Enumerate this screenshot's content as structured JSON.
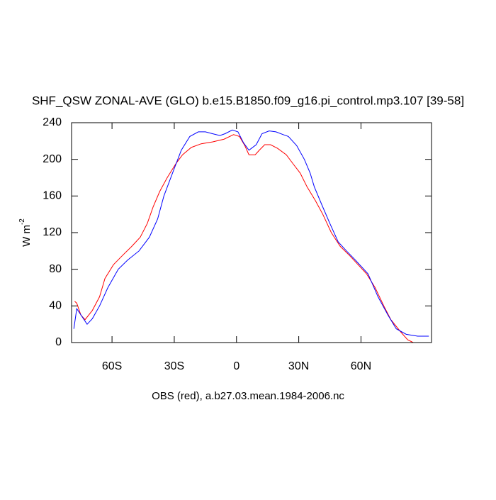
{
  "chart_data": {
    "type": "line",
    "title": "SHF_QSW ZONAL-AVE (GLO) b.e15.B1850.f09_g16.pi_control.mp3.107 [39-58]",
    "x_label": "OBS (red), a.b27.03.mean.1984-2006.nc",
    "y_label": "W m",
    "y_label_superscript": "-2",
    "xlim": [
      -79.5,
      94
    ],
    "ylim": [
      0,
      240
    ],
    "xticks": [
      {
        "value": -60,
        "label": "60S"
      },
      {
        "value": -30,
        "label": "30S"
      },
      0,
      {
        "value": 30,
        "label": "30N"
      },
      {
        "value": 60,
        "label": "60N"
      }
    ],
    "yticks": [
      0,
      40,
      80,
      120,
      160,
      200,
      240
    ],
    "series": [
      {
        "color": "#ff0000",
        "x": [
          -78,
          -77,
          -75,
          -73,
          -69.5,
          -66,
          -63.4,
          -59.3,
          -55,
          -50.5,
          -46.4,
          -43,
          -40.2,
          -37,
          -33.4,
          -29.3,
          -26,
          -21.8,
          -17,
          -11.6,
          -6,
          -1.4,
          1.4,
          4,
          6,
          9,
          11,
          13.6,
          16.4,
          19.8,
          24,
          27.3,
          30.7,
          34,
          38,
          41.6,
          45.7,
          50,
          54.5,
          58.6,
          62.7,
          66.8,
          71,
          74.4,
          79,
          82.5,
          85.2,
          92.7
        ],
        "values": [
          45,
          43,
          30,
          25,
          35,
          50,
          70,
          85,
          95,
          105,
          115,
          130,
          148,
          165,
          180,
          195,
          205,
          213,
          217,
          219,
          222,
          227,
          225,
          215,
          205,
          205,
          210,
          216,
          216,
          212,
          205,
          195,
          185,
          170,
          155,
          140,
          120,
          105,
          95,
          85,
          75,
          60,
          40,
          25,
          12,
          3,
          0,
          0
        ]
      },
      {
        "color": "#0000ff",
        "x": [
          -78.4,
          -77,
          -72,
          -69.5,
          -66,
          -62,
          -57,
          -52.5,
          -47,
          -42,
          -38,
          -35,
          -30,
          -26.6,
          -22.5,
          -18.4,
          -15,
          -11.6,
          -8,
          -5.5,
          -2,
          0.7,
          3.4,
          6,
          9.5,
          12.3,
          15.7,
          19,
          22.5,
          25,
          29,
          32.7,
          35.5,
          37.5,
          41.2,
          45,
          49,
          53,
          57.3,
          63.4,
          68.2,
          73,
          77,
          81.8,
          87.3,
          92.7
        ],
        "values": [
          15,
          37,
          20,
          26,
          40,
          60,
          80,
          90,
          100,
          115,
          135,
          160,
          190,
          210,
          225,
          230,
          230,
          228,
          226,
          228,
          232,
          230,
          218,
          210,
          216,
          228,
          231,
          230,
          227,
          225,
          215,
          200,
          185,
          170,
          150,
          130,
          110,
          100,
          90,
          75,
          50,
          30,
          15,
          9,
          7,
          7
        ]
      }
    ]
  }
}
